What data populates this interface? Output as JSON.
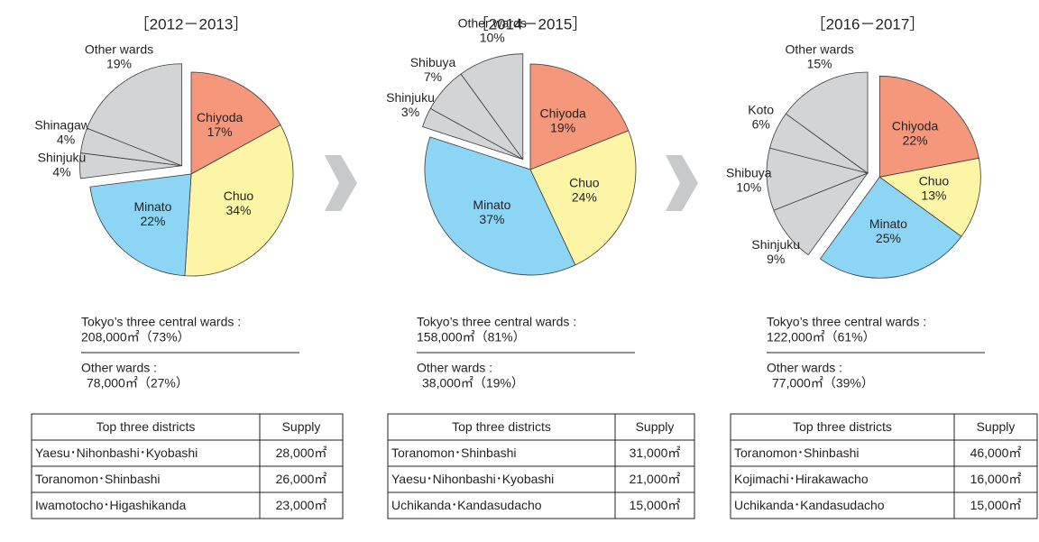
{
  "chart_data": [
    {
      "type": "pie",
      "title": "［2012－2013］",
      "categories": [
        "Chiyoda",
        "Chuo",
        "Minato",
        "Shinjuku",
        "Shinagawa",
        "Other wards"
      ],
      "values": [
        17,
        34,
        22,
        4,
        4,
        19
      ],
      "value_labels": [
        "17%",
        "34%",
        "22%",
        "4%",
        "4%",
        "19%"
      ],
      "colors": [
        "#f4977a",
        "#fdf5a6",
        "#8dd5f4",
        "#d3d4d6",
        "#d3d4d6",
        "#d3d4d6"
      ],
      "exploded": [
        false,
        false,
        false,
        true,
        true,
        true
      ],
      "summary": {
        "central_label": "Tokyo’s three central wards :",
        "central_value": "208,000㎡（73%）",
        "other_label": "Other wards :",
        "other_value": "78,000㎡（27%）"
      },
      "table": {
        "header": [
          "Top three districts",
          "Supply"
        ],
        "rows": [
          [
            "Yaesu･Nihonbashi･Kyobashi",
            "28,000㎡"
          ],
          [
            "Toranomon･Shinbashi",
            "26,000㎡"
          ],
          [
            "Iwamotocho･Higashikanda",
            "23,000㎡"
          ]
        ]
      }
    },
    {
      "type": "pie",
      "title": "［2014－2015］",
      "categories": [
        "Chiyoda",
        "Chuo",
        "Minato",
        "Shinjuku",
        "Shibuya",
        "Other wards"
      ],
      "values": [
        19,
        24,
        37,
        3,
        7,
        10
      ],
      "value_labels": [
        "19%",
        "24%",
        "37%",
        "3%",
        "7%",
        "10%"
      ],
      "colors": [
        "#f4977a",
        "#fdf5a6",
        "#8dd5f4",
        "#d3d4d6",
        "#d3d4d6",
        "#d3d4d6"
      ],
      "exploded": [
        false,
        false,
        false,
        true,
        true,
        true
      ],
      "summary": {
        "central_label": "Tokyo’s three central wards :",
        "central_value": "158,000㎡（81%）",
        "other_label": "Other wards :",
        "other_value": "38,000㎡（19%）"
      },
      "table": {
        "header": [
          "Top three districts",
          "Supply"
        ],
        "rows": [
          [
            "Toranomon･Shinbashi",
            "31,000㎡"
          ],
          [
            "Yaesu･Nihonbashi･Kyobashi",
            "21,000㎡"
          ],
          [
            "Uchikanda･Kandasudacho",
            "15,000㎡"
          ]
        ]
      }
    },
    {
      "type": "pie",
      "title": "［2016－2017］",
      "categories": [
        "Chiyoda",
        "Chuo",
        "Minato",
        "Shinjuku",
        "Shibuya",
        "Koto",
        "Other wards"
      ],
      "values": [
        22,
        13,
        25,
        9,
        10,
        6,
        15
      ],
      "value_labels": [
        "22%",
        "13%",
        "25%",
        "9%",
        "10%",
        "6%",
        "15%"
      ],
      "colors": [
        "#f4977a",
        "#fdf5a6",
        "#8dd5f4",
        "#d3d4d6",
        "#d3d4d6",
        "#d3d4d6",
        "#d3d4d6"
      ],
      "exploded": [
        true,
        true,
        true,
        false,
        false,
        false,
        false
      ],
      "summary": {
        "central_label": "Tokyo’s three central wards :",
        "central_value": "122,000㎡（61%）",
        "other_label": "Other wards :",
        "other_value": "77,000㎡（39%）"
      },
      "table": {
        "header": [
          "Top three districts",
          "Supply"
        ],
        "rows": [
          [
            "Toranomon･Shinbashi",
            "46,000㎡"
          ],
          [
            "Kojimachi･Hirakawacho",
            "16,000㎡"
          ],
          [
            "Uchikanda･Kandasudacho",
            "15,000㎡"
          ]
        ]
      }
    }
  ]
}
